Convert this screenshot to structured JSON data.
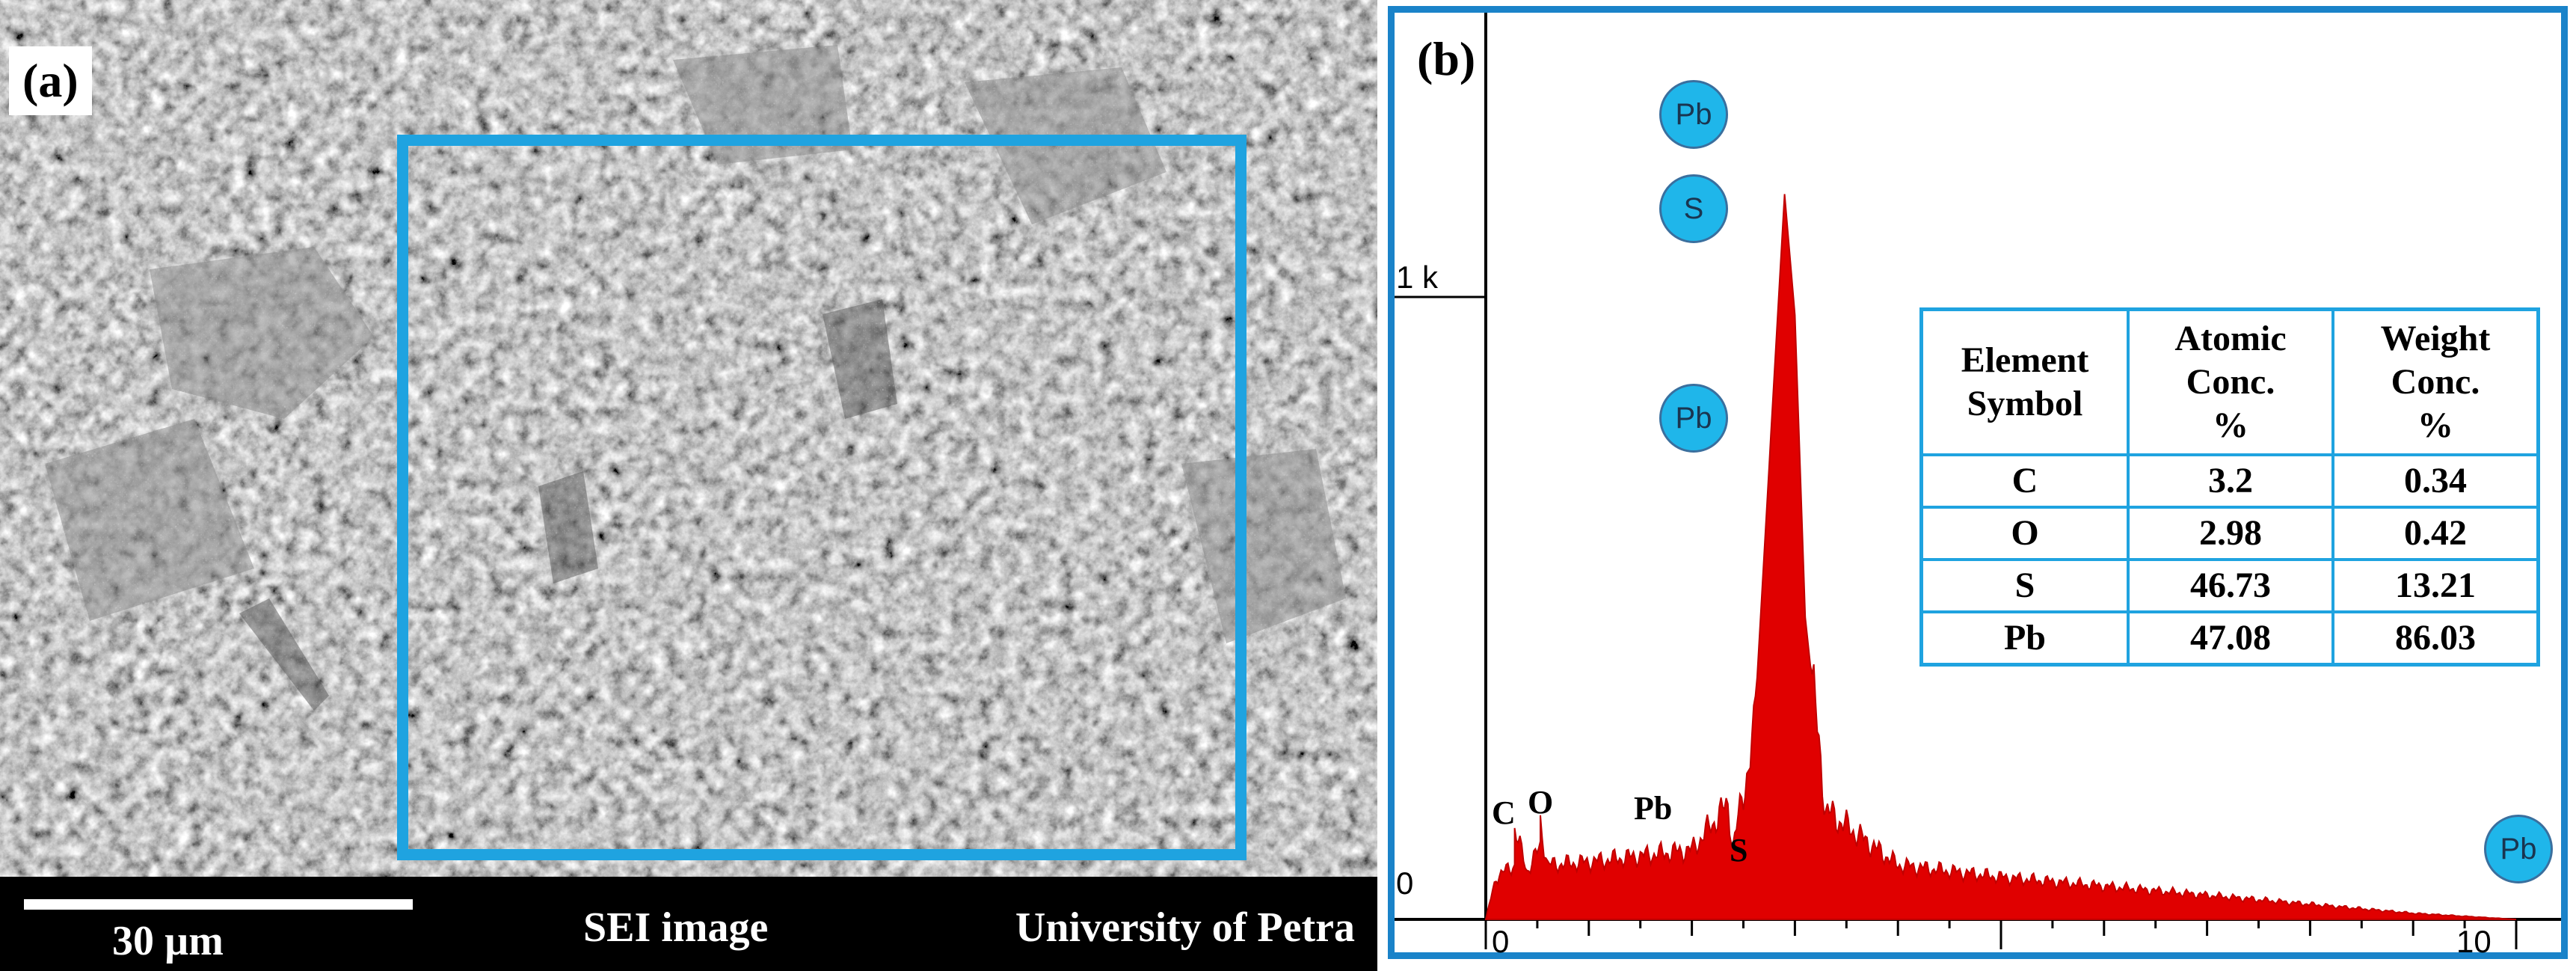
{
  "panel_a": {
    "label": "(a)",
    "scale_bar": "30 µm",
    "mode": "SEI image",
    "institution": "University of Petra"
  },
  "panel_b": {
    "label": "(b)",
    "y_ticks": [
      "1 k",
      "0"
    ],
    "x_ticks": [
      "0",
      "10"
    ],
    "peak_labels": [
      "C",
      "O",
      "Pb",
      "S"
    ],
    "markers": [
      "Pb",
      "S",
      "Pb",
      "Pb"
    ],
    "colors": {
      "spectrum": "#e00000",
      "marker": "#1fb6ea",
      "frame": "#1a83c9",
      "roi": "#1fa3e0"
    }
  },
  "chart_data": {
    "type": "area",
    "series": [
      {
        "x": [
          0.0,
          0.1,
          0.28,
          0.28,
          0.4,
          0.53,
          0.53,
          0.6,
          1.0,
          1.5,
          2.0,
          2.3,
          2.35,
          2.4,
          2.6,
          2.9,
          3.0,
          3.1,
          3.3,
          4,
          5,
          6,
          7,
          8,
          9,
          10
        ],
        "y": [
          0,
          70,
          90,
          150,
          80,
          120,
          160,
          90,
          95,
          105,
          115,
          180,
          190,
          120,
          300,
          1200,
          1000,
          500,
          180,
          90,
          70,
          55,
          40,
          25,
          10,
          0
        ]
      }
    ],
    "xlim": [
      0,
      10
    ],
    "ylim": [
      0,
      1500
    ],
    "table": {
      "headers": [
        "Element Symbol",
        "Atomic Conc. %",
        "Weight Conc. %"
      ],
      "rows": [
        [
          "C",
          "3.2",
          "0.34"
        ],
        [
          "O",
          "2.98",
          "0.42"
        ],
        [
          "S",
          "46.73",
          "13.21"
        ],
        [
          "Pb",
          "47.08",
          "86.03"
        ]
      ]
    }
  }
}
